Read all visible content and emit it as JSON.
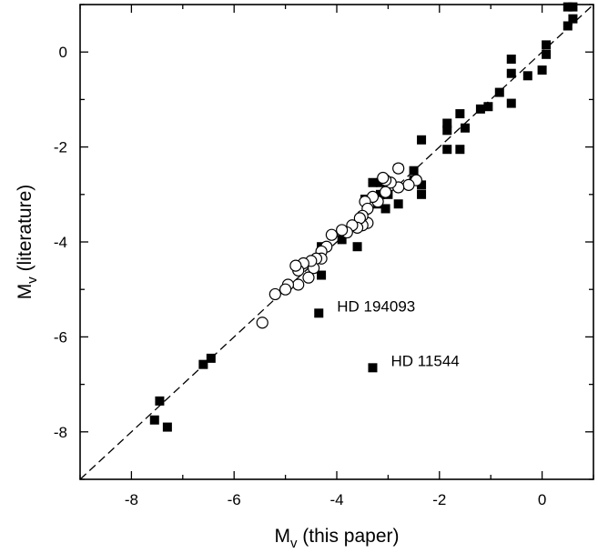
{
  "chart_data": {
    "type": "scatter",
    "xlabel": {
      "main": "M",
      "sub": "v",
      "rest": " (this paper)"
    },
    "ylabel": {
      "main": "M",
      "sub": "v",
      "rest": " (literature)"
    },
    "xlim": [
      -9,
      1
    ],
    "ylim": [
      -9,
      1
    ],
    "xticks": [
      -8,
      -6,
      -4,
      -2,
      0
    ],
    "yticks": [
      0,
      -2,
      -4,
      -6,
      -8
    ],
    "grid": false,
    "reference_line": {
      "style": "dashed",
      "x": [
        -9,
        1
      ],
      "y": [
        -9,
        1
      ]
    },
    "series": [
      {
        "marker": "filled-square",
        "points": [
          [
            0.5,
            0.95
          ],
          [
            0.6,
            0.95
          ],
          [
            0.6,
            0.7
          ],
          [
            0.5,
            0.55
          ],
          [
            0.08,
            0.15
          ],
          [
            0.08,
            -0.05
          ],
          [
            0.0,
            -0.38
          ],
          [
            -0.28,
            -0.5
          ],
          [
            -0.6,
            -0.15
          ],
          [
            -0.6,
            -0.45
          ],
          [
            -0.6,
            -1.08
          ],
          [
            -0.83,
            -0.85
          ],
          [
            -1.05,
            -1.15
          ],
          [
            -1.2,
            -1.2
          ],
          [
            -1.6,
            -1.3
          ],
          [
            -1.5,
            -1.6
          ],
          [
            -1.6,
            -2.05
          ],
          [
            -1.85,
            -1.5
          ],
          [
            -1.85,
            -1.65
          ],
          [
            -1.85,
            -2.05
          ],
          [
            -2.35,
            -1.85
          ],
          [
            -2.35,
            -2.8
          ],
          [
            -2.35,
            -3.0
          ],
          [
            -2.5,
            -2.5
          ],
          [
            -2.5,
            -2.7
          ],
          [
            -2.8,
            -2.45
          ],
          [
            -2.8,
            -3.2
          ],
          [
            -3.0,
            -3.0
          ],
          [
            -3.05,
            -3.3
          ],
          [
            -3.15,
            -2.75
          ],
          [
            -3.15,
            -3.0
          ],
          [
            -3.2,
            -3.2
          ],
          [
            -3.3,
            -2.75
          ],
          [
            -3.45,
            -3.1
          ],
          [
            -3.6,
            -4.1
          ],
          [
            -3.9,
            -3.95
          ],
          [
            -4.3,
            -4.1
          ],
          [
            -4.3,
            -4.7
          ],
          [
            -4.35,
            -5.5
          ],
          [
            -3.3,
            -6.65
          ],
          [
            -6.45,
            -6.45
          ],
          [
            -6.6,
            -6.58
          ],
          [
            -7.45,
            -7.35
          ],
          [
            -7.55,
            -7.75
          ],
          [
            -7.3,
            -7.9
          ]
        ]
      },
      {
        "marker": "open-circle",
        "points": [
          [
            -2.45,
            -2.7
          ],
          [
            -2.6,
            -2.8
          ],
          [
            -2.8,
            -2.45
          ],
          [
            -2.8,
            -2.85
          ],
          [
            -2.95,
            -2.75
          ],
          [
            -3.05,
            -2.7
          ],
          [
            -3.1,
            -2.65
          ],
          [
            -3.05,
            -2.95
          ],
          [
            -3.2,
            -3.15
          ],
          [
            -3.3,
            -3.05
          ],
          [
            -3.45,
            -3.15
          ],
          [
            -3.4,
            -3.3
          ],
          [
            -3.4,
            -3.6
          ],
          [
            -3.5,
            -3.45
          ],
          [
            -3.5,
            -3.65
          ],
          [
            -3.55,
            -3.5
          ],
          [
            -3.6,
            -3.7
          ],
          [
            -3.7,
            -3.65
          ],
          [
            -3.8,
            -3.8
          ],
          [
            -3.9,
            -3.75
          ],
          [
            -4.1,
            -3.85
          ],
          [
            -4.2,
            -4.1
          ],
          [
            -4.3,
            -4.2
          ],
          [
            -4.3,
            -4.35
          ],
          [
            -4.4,
            -4.35
          ],
          [
            -4.45,
            -4.55
          ],
          [
            -4.5,
            -4.4
          ],
          [
            -4.55,
            -4.75
          ],
          [
            -4.65,
            -4.45
          ],
          [
            -4.75,
            -4.6
          ],
          [
            -4.8,
            -4.5
          ],
          [
            -4.75,
            -4.9
          ],
          [
            -4.95,
            -4.9
          ],
          [
            -5.0,
            -5.0
          ],
          [
            -5.2,
            -5.1
          ],
          [
            -5.45,
            -5.7
          ]
        ]
      }
    ],
    "annotations": [
      {
        "text": "HD 194093",
        "x": -4.35,
        "y": -5.5
      },
      {
        "text": "HD 11544",
        "x": -3.3,
        "y": -6.65
      }
    ]
  }
}
